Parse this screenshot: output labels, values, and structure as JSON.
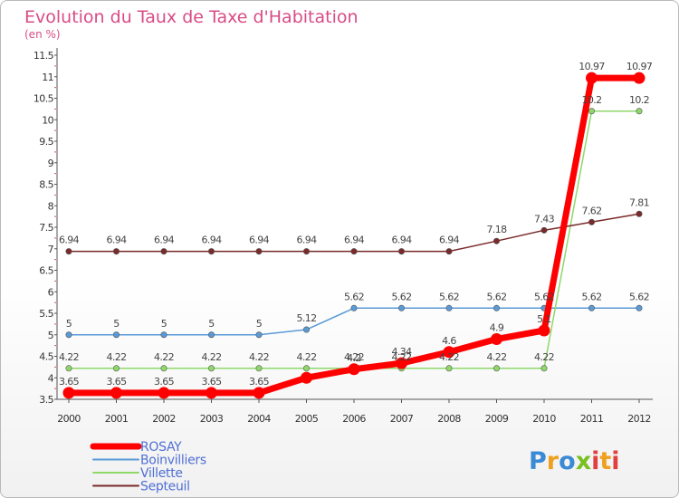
{
  "chart_data": {
    "type": "line",
    "title": "Evolution du Taux de Taxe d'Habitation",
    "subtitle": "(en %)",
    "x": [
      "2000",
      "2001",
      "2002",
      "2003",
      "2004",
      "2005",
      "2006",
      "2007",
      "2008",
      "2009",
      "2010",
      "2011",
      "2012"
    ],
    "ylim": [
      3.5,
      11.5
    ],
    "yticks": [
      "3.5",
      "4",
      "4.5",
      "5",
      "5.5",
      "6",
      "6.5",
      "7",
      "7.5",
      "8",
      "8.5",
      "9",
      "9.5",
      "10",
      "10.5",
      "11",
      "11.5"
    ],
    "grid": false,
    "legend_position": "bottom-left",
    "series": [
      {
        "name": "ROSAY",
        "color": "#ff0000",
        "values": [
          3.65,
          3.65,
          3.65,
          3.65,
          3.65,
          4.0,
          4.2,
          4.34,
          4.6,
          4.9,
          5.1,
          10.97,
          10.97
        ],
        "labels": [
          "3.65",
          "3.65",
          "3.65",
          "3.65",
          "3.65",
          "",
          "4.2",
          "4.34",
          "4.6",
          "4.9",
          "5.1",
          "10.97",
          "10.97"
        ]
      },
      {
        "name": "Boinvilliers",
        "color": "#5a9ad6",
        "values": [
          5,
          5,
          5,
          5,
          5,
          5.12,
          5.62,
          5.62,
          5.62,
          5.62,
          5.62,
          5.62,
          5.62
        ],
        "labels": [
          "5",
          "5",
          "5",
          "5",
          "5",
          "5.12",
          "5.62",
          "5.62",
          "5.62",
          "5.62",
          "5.62",
          "5.62",
          "5.62"
        ]
      },
      {
        "name": "Villette",
        "color": "#8ed86a",
        "values": [
          4.22,
          4.22,
          4.22,
          4.22,
          4.22,
          4.22,
          4.22,
          4.22,
          4.22,
          4.22,
          4.22,
          10.2,
          10.2
        ],
        "labels": [
          "4.22",
          "4.22",
          "4.22",
          "4.22",
          "4.22",
          "4.22",
          "4.22",
          "4.22",
          "4.22",
          "4.22",
          "4.22",
          "10.2",
          "10.2"
        ]
      },
      {
        "name": "Septeuil",
        "color": "#7a2a2a",
        "values": [
          6.94,
          6.94,
          6.94,
          6.94,
          6.94,
          6.94,
          6.94,
          6.94,
          6.94,
          7.18,
          7.43,
          7.62,
          7.81
        ],
        "labels": [
          "6.94",
          "6.94",
          "6.94",
          "6.94",
          "6.94",
          "6.94",
          "6.94",
          "6.94",
          "6.94",
          "7.18",
          "7.43",
          "7.62",
          "7.81"
        ]
      }
    ]
  },
  "logo": {
    "text": "Proxiti",
    "letter_colors": [
      "#3a8ad6",
      "#f0a020",
      "#3a8ad6",
      "#7ac020",
      "#e04040",
      "#f0a020",
      "#e04040"
    ]
  }
}
